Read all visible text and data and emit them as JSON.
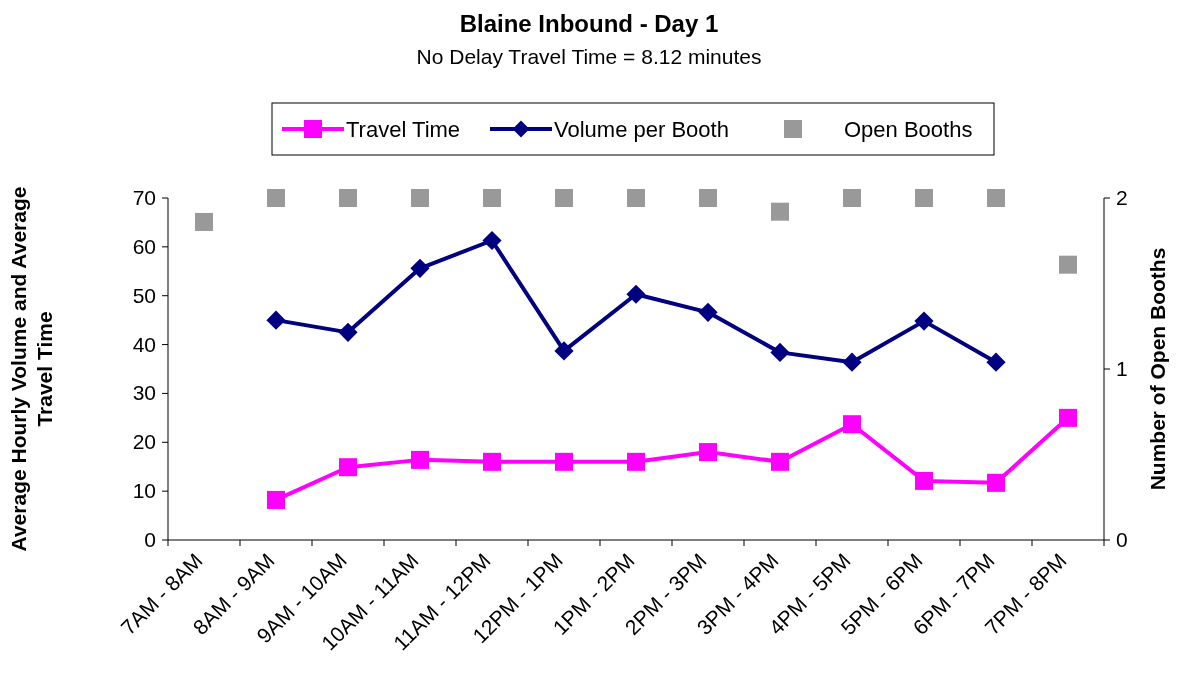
{
  "chart_data": {
    "type": "line",
    "title": "Blaine Inbound - Day 1",
    "subtitle": "No Delay Travel Time = 8.12 minutes",
    "ylabel": "Average Hourly Volume and Average Travel Time",
    "y2label": "Number of Open Booths",
    "categories": [
      "7AM - 8AM",
      "8AM - 9AM",
      "9AM - 10AM",
      "10AM - 11AM",
      "11AM - 12PM",
      "12PM - 1PM",
      "1PM - 2PM",
      "2PM - 3PM",
      "3PM - 4PM",
      "4PM - 5PM",
      "5PM - 6PM",
      "6PM - 7PM",
      "7PM - 8PM"
    ],
    "series": [
      {
        "name": "Travel Time",
        "color": "#ff00ff",
        "marker": "square",
        "values": [
          null,
          8.2,
          14.9,
          16.4,
          16,
          16,
          16,
          18,
          16,
          23.7,
          12.1,
          11.7,
          25
        ]
      },
      {
        "name": "Volume per Booth",
        "color": "#000080",
        "marker": "diamond",
        "values": [
          null,
          45,
          42.5,
          55.6,
          61.3,
          38.7,
          50.3,
          46.6,
          38.4,
          36.4,
          44.8,
          36.4,
          null
        ]
      },
      {
        "name": "Open Booths",
        "type": "scatter",
        "color": "#999999",
        "marker": "square",
        "axis": "y2",
        "values": [
          1.86,
          2,
          2,
          2,
          2,
          2,
          2,
          2,
          1.92,
          2,
          2,
          2,
          1.61
        ]
      }
    ],
    "ylim": [
      0,
      70
    ],
    "yticks": [
      0,
      10,
      20,
      30,
      40,
      50,
      60,
      70
    ],
    "y2lim": [
      0,
      2
    ],
    "y2ticks": [
      0,
      1,
      2
    ],
    "grid": false,
    "legend": "top"
  }
}
